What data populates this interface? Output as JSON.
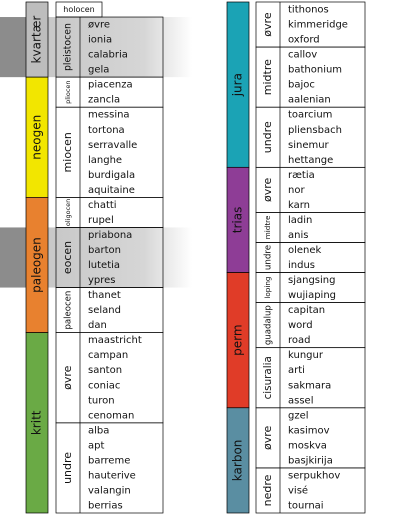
{
  "left": {
    "periods": [
      {
        "name": "kvartær",
        "color": "#bdbdbd",
        "epochs": [
          {
            "name": "holocen",
            "stages": []
          },
          {
            "name": "pleistocen",
            "highlight": true,
            "stages": [
              "øvre",
              "ionia",
              "calabria",
              "gela"
            ]
          }
        ]
      },
      {
        "name": "neogen",
        "color": "#f2e600",
        "epochs": [
          {
            "name": "pliocen",
            "stages": [
              "piacenza",
              "zancla"
            ]
          },
          {
            "name": "miocen",
            "stages": [
              "messina",
              "tortona",
              "serravalle",
              "langhe",
              "burdigala",
              "aquitaine"
            ]
          }
        ]
      },
      {
        "name": "paleogen",
        "color": "#e8812f",
        "epochs": [
          {
            "name": "oligocen",
            "stages": [
              "chatti",
              "rupel"
            ]
          },
          {
            "name": "eocen",
            "highlight": true,
            "stages": [
              "priabona",
              "barton",
              "lutetia",
              "ypres"
            ]
          },
          {
            "name": "paleocen",
            "stages": [
              "thanet",
              "seland",
              "dan"
            ]
          }
        ]
      },
      {
        "name": "kritt",
        "color": "#6aaa45",
        "epochs": [
          {
            "name": "øvre",
            "stages": [
              "maastricht",
              "campan",
              "santon",
              "coniac",
              "turon",
              "cenoman"
            ]
          },
          {
            "name": "undre",
            "stages": [
              "alba",
              "apt",
              "barreme",
              "hauterive",
              "valangin",
              "berrias"
            ]
          }
        ]
      }
    ]
  },
  "right": {
    "periods": [
      {
        "name": "jura",
        "color": "#1ba3b5",
        "epochs": [
          {
            "name": "øvre",
            "stages": [
              "tithonos",
              "kimmeridge",
              "oxford"
            ]
          },
          {
            "name": "midtre",
            "stages": [
              "callov",
              "bathonium",
              "bajoc",
              "aalenian"
            ]
          },
          {
            "name": "undre",
            "stages": [
              "toarcium",
              "pliensbach",
              "sinemur",
              "hettange"
            ]
          }
        ]
      },
      {
        "name": "trias",
        "color": "#8e3d96",
        "epochs": [
          {
            "name": "øvre",
            "stages": [
              "rætia",
              "nor",
              "karn"
            ]
          },
          {
            "name": "midtre",
            "stages": [
              "ladin",
              "anis"
            ]
          },
          {
            "name": "undre",
            "stages": [
              "olenek",
              "indus"
            ]
          }
        ]
      },
      {
        "name": "perm",
        "color": "#e03c28",
        "epochs": [
          {
            "name": "loping",
            "stages": [
              "sjangsing",
              "wujiaping"
            ]
          },
          {
            "name": "guadalup",
            "stages": [
              "capitan",
              "word",
              "road"
            ]
          },
          {
            "name": "cisuralia",
            "stages": [
              "kungur",
              "arti",
              "sakmara",
              "assel"
            ]
          }
        ]
      },
      {
        "name": "karbon",
        "color": "#5a8ea2",
        "epochs": [
          {
            "name": "øvre",
            "stages": [
              "gzel",
              "kasimov",
              "moskva",
              "basjkirija"
            ]
          },
          {
            "name": "nedre",
            "stages": [
              "serpukhov",
              "visé",
              "tournai"
            ]
          }
        ]
      }
    ]
  }
}
